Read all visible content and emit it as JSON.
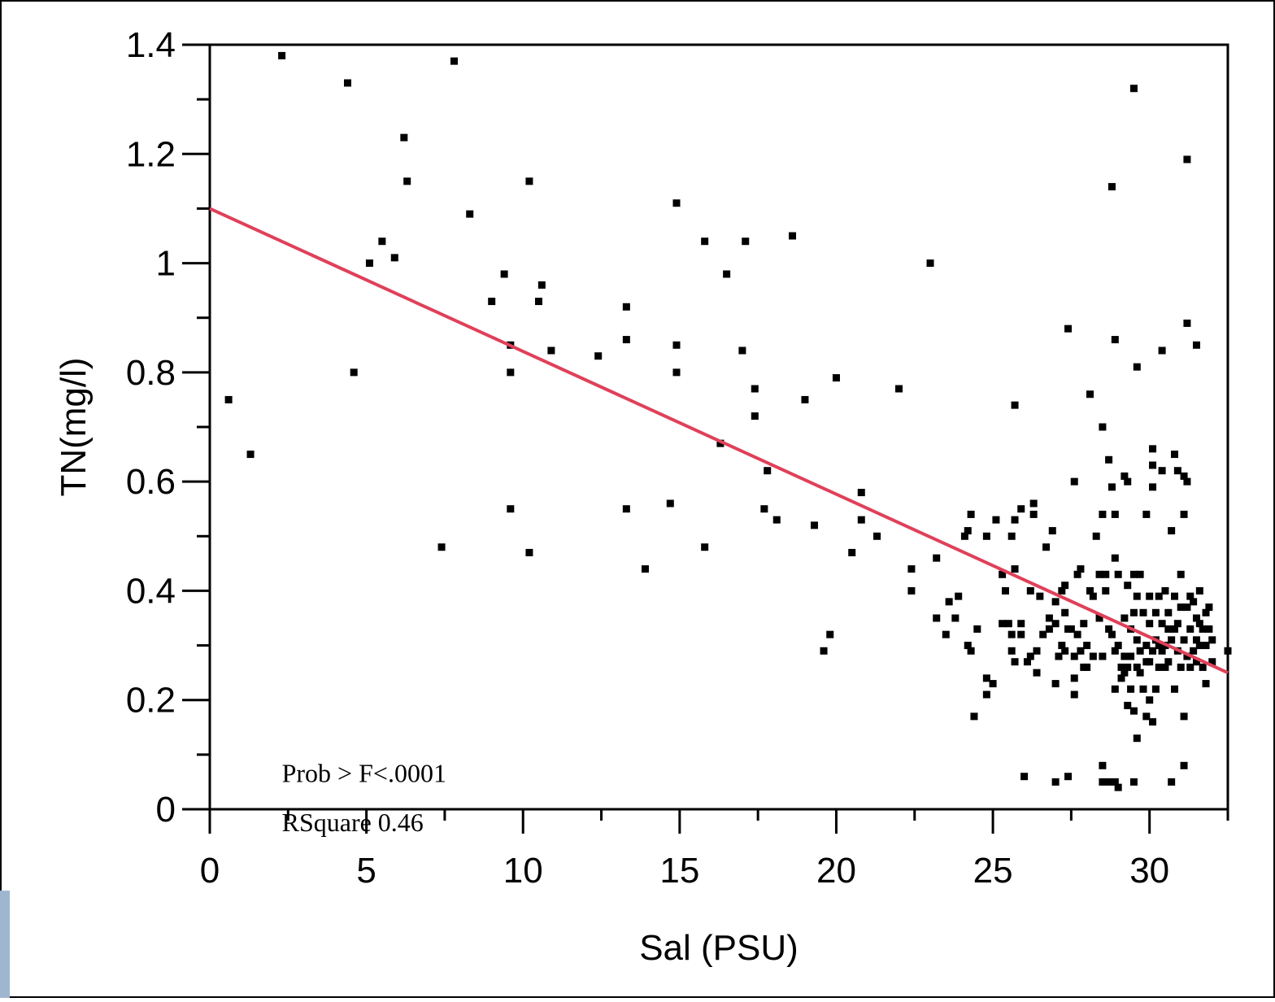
{
  "chart_data": {
    "type": "scatter",
    "title": "",
    "xlabel": "Sal (PSU)",
    "ylabel": "TN(mg/l)",
    "xlim": [
      0,
      32.5
    ],
    "ylim": [
      0,
      1.4
    ],
    "x_ticks": [
      0,
      5,
      10,
      15,
      20,
      25,
      30
    ],
    "y_ticks": [
      0,
      0.2,
      0.4,
      0.6,
      0.8,
      1,
      1.2,
      1.4
    ],
    "x_ticks_labels": [
      "0",
      "5",
      "10",
      "15",
      "20",
      "25",
      "30"
    ],
    "y_ticks_labels": [
      "0",
      "0.2",
      "0.4",
      "0.6",
      "0.8",
      "1",
      "1.2",
      "1.4"
    ],
    "grid": false,
    "point_color": "#000000",
    "fit_line": {
      "x": [
        0,
        32.5
      ],
      "y": [
        1.1,
        0.25
      ],
      "color": "#e0405a"
    },
    "annotations": [
      {
        "id": "prob",
        "text": "Prob > F<.0001",
        "x": 2.3,
        "y": 0.05
      },
      {
        "id": "rsq",
        "text": "RSquare 0.46",
        "x": 2.3,
        "y": -0.04
      }
    ],
    "series": [
      {
        "points": [
          [
            0.6,
            0.75
          ],
          [
            1.3,
            0.65
          ],
          [
            2.3,
            1.38
          ],
          [
            4.4,
            1.33
          ],
          [
            4.6,
            0.8
          ],
          [
            5.1,
            1.0
          ],
          [
            5.5,
            1.04
          ],
          [
            5.9,
            1.01
          ],
          [
            6.2,
            1.23
          ],
          [
            6.3,
            1.15
          ],
          [
            7.4,
            0.48
          ],
          [
            7.8,
            1.37
          ],
          [
            8.3,
            1.09
          ],
          [
            9.0,
            0.93
          ],
          [
            9.4,
            0.98
          ],
          [
            9.6,
            0.85
          ],
          [
            9.6,
            0.8
          ],
          [
            9.6,
            0.55
          ],
          [
            10.2,
            1.15
          ],
          [
            10.2,
            0.47
          ],
          [
            10.5,
            0.93
          ],
          [
            10.6,
            0.96
          ],
          [
            10.9,
            0.84
          ],
          [
            12.4,
            0.83
          ],
          [
            13.3,
            0.92
          ],
          [
            13.3,
            0.86
          ],
          [
            13.3,
            0.55
          ],
          [
            13.9,
            0.44
          ],
          [
            14.7,
            0.56
          ],
          [
            14.9,
            1.11
          ],
          [
            14.9,
            0.85
          ],
          [
            14.9,
            0.8
          ],
          [
            15.8,
            1.04
          ],
          [
            15.8,
            0.48
          ],
          [
            16.3,
            0.67
          ],
          [
            16.5,
            0.98
          ],
          [
            17.0,
            0.84
          ],
          [
            17.1,
            1.04
          ],
          [
            17.4,
            0.77
          ],
          [
            17.4,
            0.72
          ],
          [
            17.7,
            0.55
          ],
          [
            17.8,
            0.62
          ],
          [
            18.1,
            0.53
          ],
          [
            18.6,
            1.05
          ],
          [
            19.0,
            0.75
          ],
          [
            19.3,
            0.52
          ],
          [
            19.6,
            0.29
          ],
          [
            19.8,
            0.32
          ],
          [
            20.0,
            0.79
          ],
          [
            20.5,
            0.47
          ],
          [
            20.8,
            0.58
          ],
          [
            20.8,
            0.53
          ],
          [
            21.3,
            0.5
          ],
          [
            22.0,
            0.77
          ],
          [
            22.4,
            0.44
          ],
          [
            22.4,
            0.4
          ],
          [
            23.0,
            1.0
          ],
          [
            23.2,
            0.46
          ],
          [
            23.2,
            0.35
          ],
          [
            23.5,
            0.32
          ],
          [
            23.6,
            0.38
          ],
          [
            23.8,
            0.35
          ],
          [
            23.9,
            0.39
          ],
          [
            24.1,
            0.5
          ],
          [
            24.2,
            0.51
          ],
          [
            24.2,
            0.3
          ],
          [
            24.3,
            0.54
          ],
          [
            24.3,
            0.29
          ],
          [
            24.4,
            0.17
          ],
          [
            24.5,
            0.33
          ],
          [
            24.8,
            0.24
          ],
          [
            24.8,
            0.21
          ],
          [
            24.8,
            0.5
          ],
          [
            25.0,
            0.23
          ],
          [
            25.1,
            0.53
          ],
          [
            25.3,
            0.43
          ],
          [
            25.3,
            0.34
          ],
          [
            25.4,
            0.4
          ],
          [
            25.5,
            0.34
          ],
          [
            25.6,
            0.29
          ],
          [
            25.6,
            0.5
          ],
          [
            25.6,
            0.32
          ],
          [
            25.7,
            0.74
          ],
          [
            25.7,
            0.53
          ],
          [
            25.7,
            0.44
          ],
          [
            25.7,
            0.27
          ],
          [
            25.9,
            0.55
          ],
          [
            25.9,
            0.34
          ],
          [
            25.9,
            0.32
          ],
          [
            26.0,
            0.06
          ],
          [
            26.1,
            0.27
          ],
          [
            26.2,
            0.4
          ],
          [
            26.2,
            0.28
          ],
          [
            26.3,
            0.56
          ],
          [
            26.3,
            0.54
          ],
          [
            26.4,
            0.29
          ],
          [
            26.4,
            0.25
          ],
          [
            26.5,
            0.39
          ],
          [
            26.6,
            0.32
          ],
          [
            26.7,
            0.48
          ],
          [
            26.8,
            0.35
          ],
          [
            26.8,
            0.33
          ],
          [
            26.9,
            0.51
          ],
          [
            27.0,
            0.38
          ],
          [
            27.0,
            0.34
          ],
          [
            27.0,
            0.23
          ],
          [
            27.0,
            0.05
          ],
          [
            27.1,
            0.28
          ],
          [
            27.2,
            0.4
          ],
          [
            27.2,
            0.3
          ],
          [
            27.3,
            0.41
          ],
          [
            27.3,
            0.36
          ],
          [
            27.3,
            0.29
          ],
          [
            27.4,
            0.88
          ],
          [
            27.4,
            0.33
          ],
          [
            27.4,
            0.06
          ],
          [
            27.5,
            0.33
          ],
          [
            27.6,
            0.6
          ],
          [
            27.6,
            0.28
          ],
          [
            27.6,
            0.24
          ],
          [
            27.6,
            0.21
          ],
          [
            27.7,
            0.43
          ],
          [
            27.7,
            0.32
          ],
          [
            27.8,
            0.44
          ],
          [
            27.8,
            0.29
          ],
          [
            27.9,
            0.34
          ],
          [
            27.9,
            0.26
          ],
          [
            28.0,
            0.3
          ],
          [
            28.0,
            0.26
          ],
          [
            28.1,
            0.76
          ],
          [
            28.1,
            0.4
          ],
          [
            28.2,
            0.39
          ],
          [
            28.2,
            0.28
          ],
          [
            28.3,
            0.5
          ],
          [
            28.4,
            0.35
          ],
          [
            28.4,
            0.43
          ],
          [
            28.5,
            0.7
          ],
          [
            28.5,
            0.54
          ],
          [
            28.5,
            0.28
          ],
          [
            28.5,
            0.05
          ],
          [
            28.5,
            0.08
          ],
          [
            28.6,
            0.43
          ],
          [
            28.6,
            0.4
          ],
          [
            28.7,
            0.64
          ],
          [
            28.7,
            0.33
          ],
          [
            28.7,
            0.05
          ],
          [
            28.8,
            1.14
          ],
          [
            28.8,
            0.59
          ],
          [
            28.8,
            0.32
          ],
          [
            28.9,
            0.86
          ],
          [
            28.9,
            0.54
          ],
          [
            28.9,
            0.46
          ],
          [
            28.9,
            0.29
          ],
          [
            28.9,
            0.22
          ],
          [
            28.9,
            0.05
          ],
          [
            29.0,
            0.43
          ],
          [
            29.0,
            0.3
          ],
          [
            29.0,
            0.04
          ],
          [
            29.1,
            0.26
          ],
          [
            29.1,
            0.24
          ],
          [
            29.2,
            0.61
          ],
          [
            29.2,
            0.35
          ],
          [
            29.2,
            0.28
          ],
          [
            29.2,
            0.25
          ],
          [
            29.3,
            0.6
          ],
          [
            29.3,
            0.41
          ],
          [
            29.3,
            0.26
          ],
          [
            29.3,
            0.19
          ],
          [
            29.4,
            0.33
          ],
          [
            29.4,
            0.28
          ],
          [
            29.4,
            0.22
          ],
          [
            29.5,
            1.32
          ],
          [
            29.5,
            0.43
          ],
          [
            29.5,
            0.36
          ],
          [
            29.5,
            0.18
          ],
          [
            29.5,
            0.05
          ],
          [
            29.6,
            0.81
          ],
          [
            29.6,
            0.39
          ],
          [
            29.6,
            0.31
          ],
          [
            29.6,
            0.26
          ],
          [
            29.6,
            0.13
          ],
          [
            29.7,
            0.43
          ],
          [
            29.7,
            0.29
          ],
          [
            29.7,
            0.25
          ],
          [
            29.8,
            0.36
          ],
          [
            29.8,
            0.22
          ],
          [
            29.9,
            0.54
          ],
          [
            29.9,
            0.3
          ],
          [
            29.9,
            0.27
          ],
          [
            29.9,
            0.17
          ],
          [
            30.0,
            0.39
          ],
          [
            30.0,
            0.34
          ],
          [
            30.0,
            0.27
          ],
          [
            30.0,
            0.2
          ],
          [
            30.1,
            0.66
          ],
          [
            30.1,
            0.63
          ],
          [
            30.1,
            0.59
          ],
          [
            30.1,
            0.29
          ],
          [
            30.1,
            0.16
          ],
          [
            30.2,
            0.36
          ],
          [
            30.2,
            0.31
          ],
          [
            30.2,
            0.22
          ],
          [
            30.3,
            0.39
          ],
          [
            30.3,
            0.3
          ],
          [
            30.3,
            0.26
          ],
          [
            30.4,
            0.84
          ],
          [
            30.4,
            0.62
          ],
          [
            30.4,
            0.34
          ],
          [
            30.4,
            0.29
          ],
          [
            30.5,
            0.4
          ],
          [
            30.5,
            0.3
          ],
          [
            30.5,
            0.26
          ],
          [
            30.6,
            0.36
          ],
          [
            30.6,
            0.33
          ],
          [
            30.6,
            0.27
          ],
          [
            30.7,
            0.51
          ],
          [
            30.7,
            0.31
          ],
          [
            30.7,
            0.05
          ],
          [
            30.8,
            0.65
          ],
          [
            30.8,
            0.39
          ],
          [
            30.8,
            0.33
          ],
          [
            30.8,
            0.22
          ],
          [
            30.9,
            0.62
          ],
          [
            30.9,
            0.34
          ],
          [
            30.9,
            0.29
          ],
          [
            31.0,
            0.43
          ],
          [
            31.0,
            0.37
          ],
          [
            31.0,
            0.26
          ],
          [
            31.1,
            0.61
          ],
          [
            31.1,
            0.54
          ],
          [
            31.1,
            0.31
          ],
          [
            31.1,
            0.17
          ],
          [
            31.1,
            0.08
          ],
          [
            31.2,
            1.19
          ],
          [
            31.2,
            0.89
          ],
          [
            31.2,
            0.6
          ],
          [
            31.2,
            0.37
          ],
          [
            31.2,
            0.28
          ],
          [
            31.3,
            0.39
          ],
          [
            31.3,
            0.33
          ],
          [
            31.3,
            0.26
          ],
          [
            31.4,
            0.38
          ],
          [
            31.4,
            0.29
          ],
          [
            31.5,
            0.85
          ],
          [
            31.5,
            0.35
          ],
          [
            31.5,
            0.31
          ],
          [
            31.5,
            0.27
          ],
          [
            31.6,
            0.4
          ],
          [
            31.6,
            0.34
          ],
          [
            31.6,
            0.3
          ],
          [
            31.7,
            0.33
          ],
          [
            31.7,
            0.26
          ],
          [
            31.8,
            0.36
          ],
          [
            31.8,
            0.3
          ],
          [
            31.8,
            0.23
          ],
          [
            31.9,
            0.37
          ],
          [
            31.9,
            0.33
          ],
          [
            32.0,
            0.31
          ],
          [
            32.0,
            0.27
          ],
          [
            32.5,
            0.29
          ]
        ]
      }
    ]
  }
}
